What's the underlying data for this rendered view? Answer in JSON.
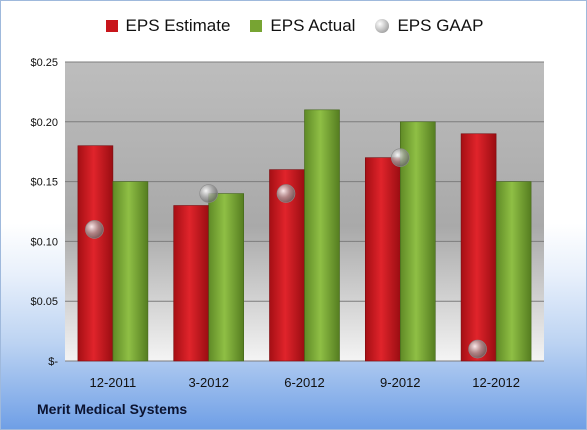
{
  "legend": {
    "estimate": "EPS Estimate",
    "actual": "EPS Actual",
    "gaap": "EPS GAAP"
  },
  "company": "Merit Medical Systems",
  "colors": {
    "estimate": "#c8151b",
    "actual": "#77a432",
    "gaap": "#a9a9a9"
  },
  "chart_data": {
    "type": "bar",
    "categories": [
      "12-2011",
      "3-2012",
      "6-2012",
      "9-2012",
      "12-2012"
    ],
    "series": [
      {
        "name": "EPS Estimate",
        "type": "bar",
        "values": [
          0.18,
          0.13,
          0.16,
          0.17,
          0.19
        ]
      },
      {
        "name": "EPS Actual",
        "type": "bar",
        "values": [
          0.15,
          0.14,
          0.21,
          0.2,
          0.15
        ]
      },
      {
        "name": "EPS GAAP",
        "type": "scatter",
        "values": [
          0.11,
          0.14,
          0.14,
          0.17,
          0.01
        ]
      }
    ],
    "yticks": [
      0,
      0.05,
      0.1,
      0.15,
      0.2,
      0.25
    ],
    "ytick_labels": [
      "$-",
      "$0.05",
      "$0.10",
      "$0.15",
      "$0.20",
      "$0.25"
    ],
    "ylim": [
      0,
      0.25
    ],
    "grid": true,
    "legend_position": "top"
  }
}
